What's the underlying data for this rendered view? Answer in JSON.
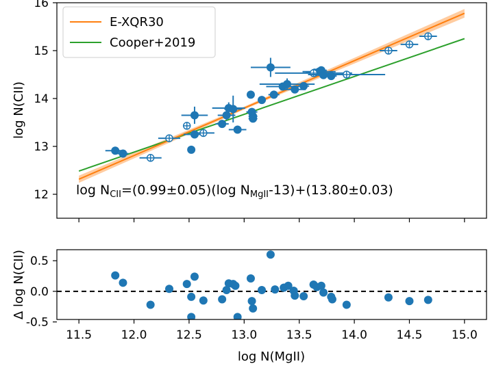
{
  "chart_data": [
    {
      "type": "scatter",
      "panel": "main",
      "ylabel": "log N(CII)",
      "xlim": [
        11.3,
        15.2
      ],
      "ylim": [
        11.5,
        16.0
      ],
      "yticks": [
        "12",
        "13",
        "14",
        "15",
        "16"
      ],
      "fit_lines": [
        {
          "name": "E-XQR30",
          "color": "#ff7f0e",
          "slope": 0.99,
          "intercept": 13.8,
          "band": 0.05
        },
        {
          "name": "Cooper+2019",
          "color": "#2ca02c",
          "slope": 0.79,
          "intercept": 13.67
        }
      ],
      "equation": {
        "prefix": "log N",
        "sub1": "CII",
        "middle": "=(0.99±0.05)(log N",
        "sub2": "MgII",
        "suffix": "-13)+(13.80±0.03)"
      },
      "filled_points": [
        {
          "x": 11.83,
          "y": 12.91,
          "xerr": 0.09,
          "yerr": 0.03
        },
        {
          "x": 11.9,
          "y": 12.85,
          "xerr": 0.05,
          "yerr": 0.05
        },
        {
          "x": 12.52,
          "y": 12.93,
          "xerr": 0.0,
          "yerr": 0.0
        },
        {
          "x": 12.55,
          "y": 13.25,
          "xerr": 0.1,
          "yerr": 0.08
        },
        {
          "x": 12.55,
          "y": 13.65,
          "xerr": 0.12,
          "yerr": 0.18
        },
        {
          "x": 12.8,
          "y": 13.47,
          "xerr": 0.06,
          "yerr": 0.08
        },
        {
          "x": 12.84,
          "y": 13.65,
          "xerr": 0.08,
          "yerr": 0.1
        },
        {
          "x": 12.86,
          "y": 13.8,
          "xerr": 0.15,
          "yerr": 0.12
        },
        {
          "x": 12.9,
          "y": 13.78,
          "xerr": 0.08,
          "yerr": 0.28
        },
        {
          "x": 12.94,
          "y": 13.35,
          "xerr": 0.08,
          "yerr": 0.06
        },
        {
          "x": 13.06,
          "y": 14.08,
          "xerr": 0.0,
          "yerr": 0.0
        },
        {
          "x": 13.07,
          "y": 13.72,
          "xerr": 0.05,
          "yerr": 0.05
        },
        {
          "x": 13.08,
          "y": 13.63,
          "xerr": 0.04,
          "yerr": 0.05
        },
        {
          "x": 13.08,
          "y": 13.58,
          "xerr": 0.04,
          "yerr": 0.05
        },
        {
          "x": 13.16,
          "y": 13.97,
          "xerr": 0.0,
          "yerr": 0.0
        },
        {
          "x": 13.24,
          "y": 14.65,
          "xerr": 0.18,
          "yerr": 0.2
        },
        {
          "x": 13.27,
          "y": 14.08,
          "xerr": 0.05,
          "yerr": 0.05
        },
        {
          "x": 13.35,
          "y": 14.25,
          "xerr": 0.15,
          "yerr": 0.08
        },
        {
          "x": 13.39,
          "y": 14.3,
          "xerr": 0.25,
          "yerr": 0.12
        },
        {
          "x": 13.46,
          "y": 14.19,
          "xerr": 0.1,
          "yerr": 0.06
        },
        {
          "x": 13.54,
          "y": 14.26,
          "xerr": 0.05,
          "yerr": 0.04
        },
        {
          "x": 13.64,
          "y": 14.54,
          "xerr": 0.08,
          "yerr": 0.04
        },
        {
          "x": 13.68,
          "y": 14.56,
          "xerr": 0.15,
          "yerr": 0.06
        },
        {
          "x": 13.7,
          "y": 14.59,
          "xerr": 0.05,
          "yerr": 0.03
        },
        {
          "x": 13.72,
          "y": 14.49,
          "xerr": 0.08,
          "yerr": 0.05
        },
        {
          "x": 13.79,
          "y": 14.47,
          "xerr": 0.05,
          "yerr": 0.06
        }
      ],
      "open_points": [
        {
          "x": 12.15,
          "y": 12.76,
          "xerr": 0.1
        },
        {
          "x": 12.32,
          "y": 13.17,
          "xerr": 0.1
        },
        {
          "x": 12.48,
          "y": 13.43,
          "xerr": 0.0
        },
        {
          "x": 12.63,
          "y": 13.28,
          "xerr": 0.1
        },
        {
          "x": 13.63,
          "y": 14.53,
          "xerr": 0.35
        },
        {
          "x": 13.93,
          "y": 14.5,
          "xerr": 0.35
        },
        {
          "x": 14.31,
          "y": 15.0,
          "xerr": 0.08
        },
        {
          "x": 14.5,
          "y": 15.13,
          "xerr": 0.08
        },
        {
          "x": 14.67,
          "y": 15.3,
          "xerr": 0.08
        }
      ]
    },
    {
      "type": "scatter",
      "panel": "residual",
      "xlabel": "log N(MgII)",
      "ylabel": "Δ log N(CII)",
      "xlim": [
        11.3,
        15.2
      ],
      "ylim": [
        -0.46,
        0.68
      ],
      "xticks": [
        "11.5",
        "12.0",
        "12.5",
        "13.0",
        "13.5",
        "14.0",
        "14.5",
        "15.0"
      ],
      "yticks": [
        "0.5",
        "0.0",
        "-0.5"
      ],
      "zero_line": 0.0,
      "points": [
        {
          "x": 11.83,
          "y": 0.26
        },
        {
          "x": 11.9,
          "y": 0.14
        },
        {
          "x": 12.15,
          "y": -0.22
        },
        {
          "x": 12.32,
          "y": 0.04
        },
        {
          "x": 12.48,
          "y": 0.12
        },
        {
          "x": 12.52,
          "y": -0.09
        },
        {
          "x": 12.52,
          "y": -0.42
        },
        {
          "x": 12.55,
          "y": 0.24
        },
        {
          "x": 12.63,
          "y": -0.15
        },
        {
          "x": 12.8,
          "y": -0.13
        },
        {
          "x": 12.84,
          "y": 0.02
        },
        {
          "x": 12.86,
          "y": 0.13
        },
        {
          "x": 12.9,
          "y": 0.12
        },
        {
          "x": 12.92,
          "y": 0.09
        },
        {
          "x": 12.94,
          "y": -0.42
        },
        {
          "x": 13.06,
          "y": 0.21
        },
        {
          "x": 13.07,
          "y": -0.16
        },
        {
          "x": 13.08,
          "y": -0.28
        },
        {
          "x": 13.16,
          "y": 0.02
        },
        {
          "x": 13.24,
          "y": 0.6
        },
        {
          "x": 13.28,
          "y": 0.03
        },
        {
          "x": 13.36,
          "y": 0.06
        },
        {
          "x": 13.4,
          "y": 0.09
        },
        {
          "x": 13.45,
          "y": 0.01
        },
        {
          "x": 13.46,
          "y": -0.07
        },
        {
          "x": 13.54,
          "y": -0.08
        },
        {
          "x": 13.63,
          "y": 0.11
        },
        {
          "x": 13.66,
          "y": 0.07
        },
        {
          "x": 13.7,
          "y": 0.09
        },
        {
          "x": 13.72,
          "y": -0.02
        },
        {
          "x": 13.79,
          "y": -0.09
        },
        {
          "x": 13.8,
          "y": -0.13
        },
        {
          "x": 13.93,
          "y": -0.22
        },
        {
          "x": 14.31,
          "y": -0.1
        },
        {
          "x": 14.5,
          "y": -0.16
        },
        {
          "x": 14.67,
          "y": -0.14
        }
      ]
    }
  ],
  "colors": {
    "points": "#1f77b4",
    "orange": "#ff7f0e",
    "orange_band": "#ffbb80",
    "green": "#2ca02c",
    "axis": "#000000"
  }
}
